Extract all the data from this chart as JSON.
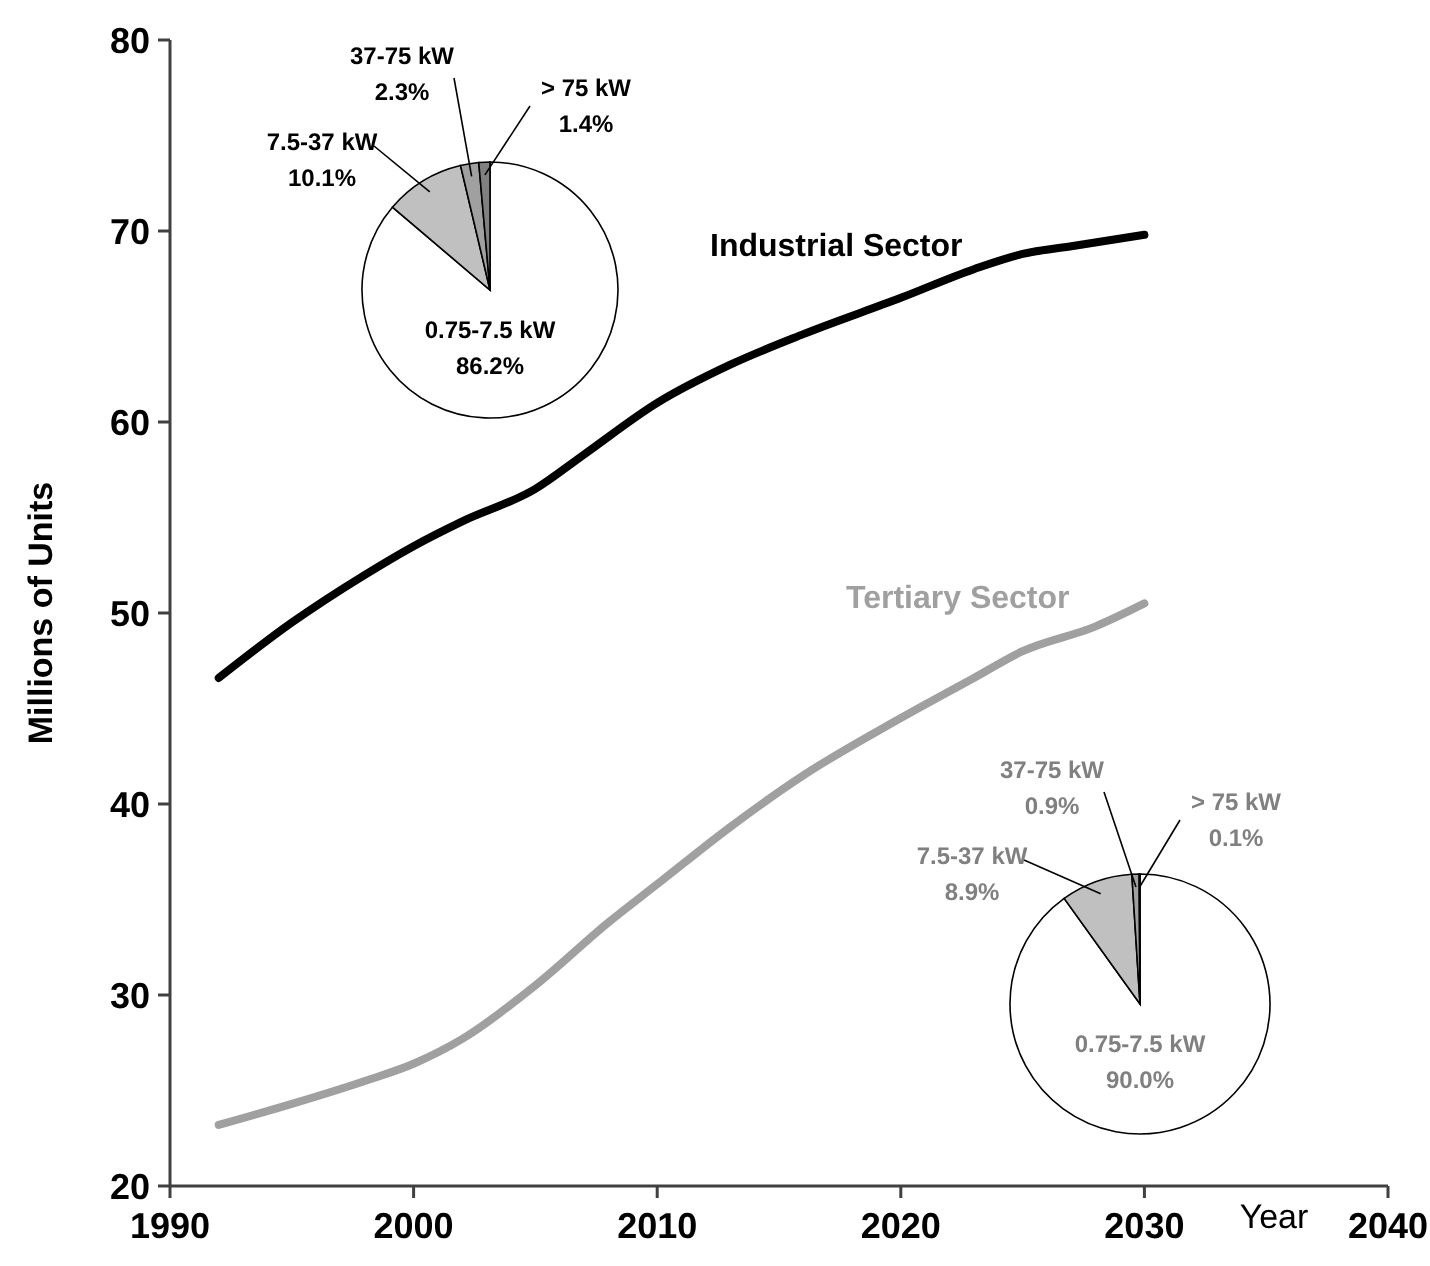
{
  "chart_data": [
    {
      "type": "line",
      "xlabel": "Year",
      "ylabel": "Millions of Units",
      "xlim": [
        1990,
        2040
      ],
      "xticks": [
        1990,
        2000,
        2010,
        2020,
        2030,
        2040
      ],
      "ylim": [
        20,
        80
      ],
      "yticks": [
        20,
        30,
        40,
        50,
        60,
        70,
        80
      ],
      "grid": false,
      "marker": "none",
      "line_style": "solid",
      "series": [
        {
          "name": "Industrial Sector",
          "color": "#000000",
          "x": [
            1992,
            1995,
            1998,
            2000,
            2002,
            2005,
            2007,
            2010,
            2013,
            2016,
            2020,
            2023,
            2025,
            2027,
            2030
          ],
          "values": [
            46.6,
            49.5,
            52.0,
            53.5,
            54.8,
            56.5,
            58.3,
            61.0,
            63.0,
            64.6,
            66.5,
            68.0,
            68.8,
            69.2,
            69.8
          ]
        },
        {
          "name": "Tertiary Sector",
          "color": "#a0a0a0",
          "x": [
            1992,
            1995,
            1998,
            2000,
            2002,
            2005,
            2008,
            2010,
            2013,
            2016,
            2020,
            2023,
            2025,
            2028,
            2030
          ],
          "values": [
            23.2,
            24.3,
            25.5,
            26.4,
            27.7,
            30.5,
            33.8,
            35.8,
            38.8,
            41.5,
            44.5,
            46.6,
            48.0,
            49.3,
            50.5
          ]
        }
      ]
    },
    {
      "type": "pie",
      "categories": [
        "0.75-7.5 kW",
        "7.5-37 kW",
        "37-75 kW",
        "> 75 kW"
      ],
      "values": [
        86.2,
        10.1,
        2.3,
        1.4
      ],
      "value_labels": [
        "86.2%",
        "10.1%",
        "2.3%",
        "1.4%"
      ],
      "colors": [
        "#ffffff",
        "#c0c0c0",
        "#a0a0a0",
        "#808080"
      ]
    },
    {
      "type": "pie",
      "categories": [
        "0.75-7.5 kW",
        "7.5-37 kW",
        "37-75 kW",
        "> 75 kW"
      ],
      "values": [
        90.0,
        8.9,
        0.9,
        0.1
      ],
      "value_labels": [
        "90.0%",
        "8.9%",
        "0.9%",
        "0.1%"
      ],
      "colors": [
        "#ffffff",
        "#c0c0c0",
        "#a0a0a0",
        "#808080"
      ]
    }
  ]
}
